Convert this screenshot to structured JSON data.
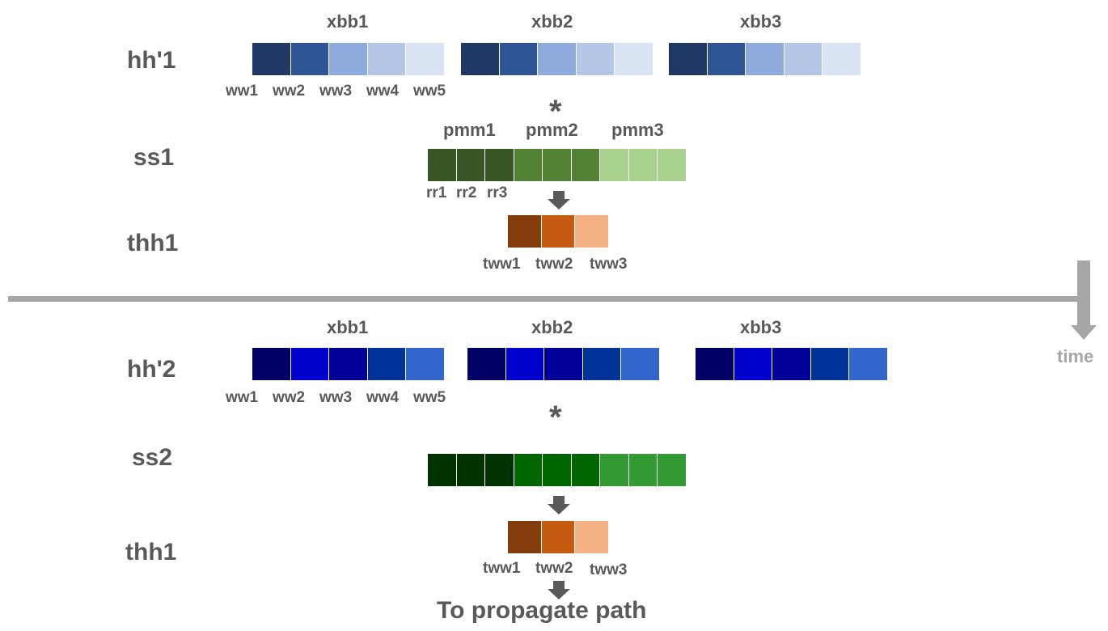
{
  "colors": {
    "text": "#595959",
    "divider": "#a6a6a6",
    "arrow": "#595959",
    "blue_light_shades": [
      "#1f3864",
      "#2f5597",
      "#8faadc",
      "#b4c7e7",
      "#dae3f3"
    ],
    "blue_dark_shades": [
      "#000066",
      "#0000cc",
      "#000099",
      "#003399",
      "#3366cc"
    ],
    "green1_shades": [
      "#375623",
      "#375623",
      "#375623",
      "#548235",
      "#548235",
      "#548235",
      "#a9d18e",
      "#a9d18e",
      "#a9d18e"
    ],
    "green2_shades": [
      "#003300",
      "#003300",
      "#003300",
      "#006600",
      "#006600",
      "#006600",
      "#339933",
      "#339933",
      "#339933"
    ],
    "orange_shades": [
      "#843c0c",
      "#c55a11",
      "#f4b183"
    ]
  },
  "top": {
    "row_h": "hh'1",
    "row_s": "ss1",
    "row_t": "thh1",
    "blocks": [
      "xbb1",
      "xbb2",
      "xbb3"
    ],
    "w_labels": [
      "ww1",
      "ww2",
      "ww3",
      "ww4",
      "ww5"
    ],
    "operator": "*",
    "pm_labels": [
      "pmm1",
      "pmm2",
      "pmm3"
    ],
    "r_labels": [
      "rr1",
      "rr2",
      "rr3"
    ],
    "tw_labels": [
      "tww1",
      "tww2",
      "tww3"
    ]
  },
  "bottom": {
    "row_h": "hh'2",
    "row_s": "ss2",
    "row_t": "thh1",
    "blocks": [
      "xbb1",
      "xbb2",
      "xbb3"
    ],
    "w_labels": [
      "ww1",
      "ww2",
      "ww3",
      "ww4",
      "ww5"
    ],
    "operator": "*",
    "tw_labels": [
      "tww1",
      "tww2",
      "tww3"
    ],
    "final": "To propagate path"
  },
  "time_label": "time"
}
